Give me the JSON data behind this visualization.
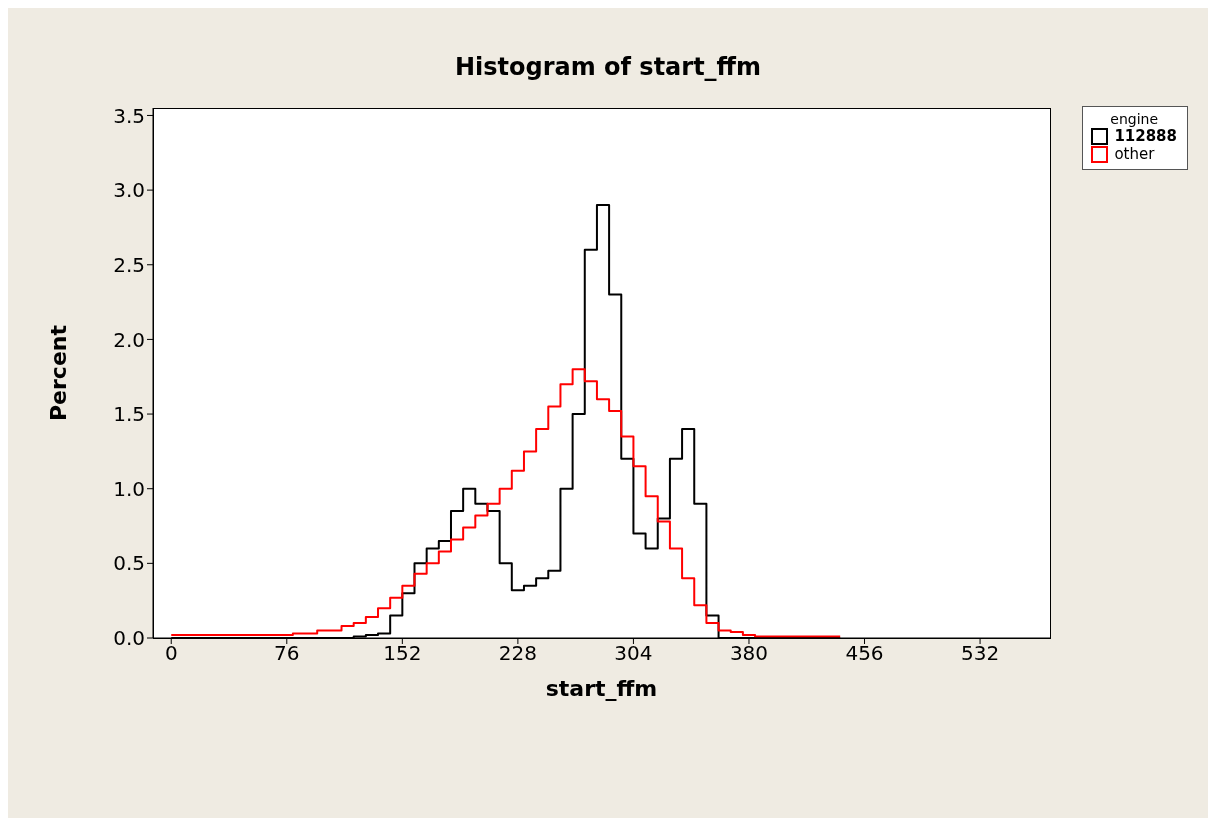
{
  "chart_data": {
    "type": "histogram",
    "title": "Histogram of start_ffm",
    "xlabel": "start_ffm",
    "ylabel": "Percent",
    "legend_title": "engine",
    "bins": [
      0,
      8,
      16,
      24,
      32,
      40,
      48,
      56,
      64,
      72,
      80,
      88,
      96,
      104,
      112,
      120,
      128,
      136,
      144,
      152,
      160,
      168,
      176,
      184,
      192,
      200,
      208,
      216,
      224,
      232,
      240,
      248,
      256,
      264,
      272,
      280,
      288,
      296,
      304,
      312,
      320,
      328,
      336,
      344,
      352,
      360,
      368,
      376,
      384,
      392,
      400,
      408,
      416,
      424,
      432,
      440
    ],
    "series": [
      {
        "name": "112888",
        "color": "#000000",
        "values": [
          0,
          0,
          0,
          0,
          0,
          0,
          0,
          0,
          0,
          0,
          0,
          0,
          0,
          0,
          0,
          0.01,
          0.02,
          0.03,
          0.15,
          0.3,
          0.5,
          0.6,
          0.65,
          0.85,
          1.0,
          0.9,
          0.85,
          0.5,
          0.32,
          0.35,
          0.4,
          0.45,
          1.0,
          1.5,
          2.6,
          2.9,
          2.3,
          1.2,
          0.7,
          0.6,
          0.8,
          1.2,
          1.4,
          0.9,
          0.15,
          0,
          0,
          0,
          0,
          0,
          0,
          0,
          0,
          0,
          0
        ]
      },
      {
        "name": "other",
        "color": "#ff0000",
        "values": [
          0.02,
          0.02,
          0.02,
          0.02,
          0.02,
          0.02,
          0.02,
          0.02,
          0.02,
          0.02,
          0.03,
          0.03,
          0.05,
          0.05,
          0.08,
          0.1,
          0.14,
          0.2,
          0.27,
          0.35,
          0.43,
          0.5,
          0.58,
          0.66,
          0.74,
          0.82,
          0.9,
          1.0,
          1.12,
          1.25,
          1.4,
          1.55,
          1.7,
          1.8,
          1.72,
          1.6,
          1.52,
          1.35,
          1.15,
          0.95,
          0.78,
          0.6,
          0.4,
          0.22,
          0.1,
          0.05,
          0.04,
          0.02,
          0.01,
          0.01,
          0.01,
          0.01,
          0.01,
          0.01,
          0.01
        ]
      }
    ],
    "xlim": [
      -12,
      578
    ],
    "xticks": [
      0,
      76,
      152,
      228,
      304,
      380,
      456,
      532
    ],
    "ylim": [
      0,
      3.55
    ],
    "yticks": [
      {
        "value": 0,
        "label": "0.0"
      },
      {
        "value": 0.5,
        "label": "0.5"
      },
      {
        "value": 1,
        "label": "1.0"
      },
      {
        "value": 1.5,
        "label": "1.5"
      },
      {
        "value": 2,
        "label": "2.0"
      },
      {
        "value": 2.5,
        "label": "2.5"
      },
      {
        "value": 3,
        "label": "3.0"
      },
      {
        "value": 3.5,
        "label": "3.5"
      }
    ],
    "legend": "top right"
  }
}
